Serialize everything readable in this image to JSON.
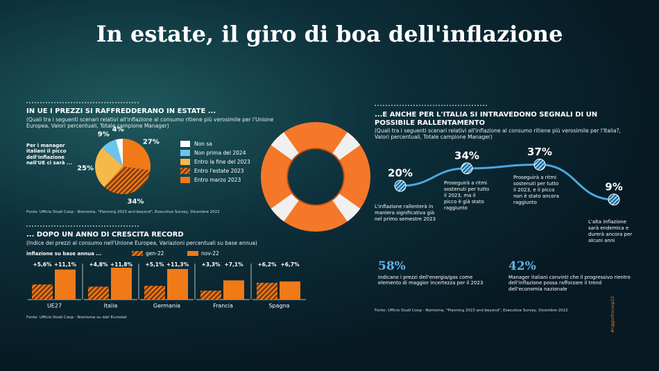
{
  "title": "In estate, il giro di boa dell'inflazione",
  "tag": "#rapportocoop22",
  "chart_data": [
    {
      "type": "pie",
      "title": "IN UE I PREZZI SI RAFFREDDERANO IN ESTATE ...",
      "subtitle": "(Quali tra i seguenti scenari relativi all'inflazione al consumo ritiene più verosimile per l'Unione Europea, Valori percentuali, Totale campione Manager)",
      "annotation": "Per i manager italiani il picco dell'inflazione nell'UE ci sarà ...",
      "categories": [
        "Non sa",
        "Non prima del 2024",
        "Entro la fine del 2023",
        "Entro l'estate 2023",
        "Entro marzo 2023"
      ],
      "values": [
        4,
        9,
        25,
        34,
        27
      ],
      "value_labels": [
        "4%",
        "9%",
        "25%",
        "34%",
        "27%"
      ],
      "colors": [
        "#ffffff",
        "#6cc4ee",
        "#f7b84a",
        "hatch",
        "#f07a18"
      ],
      "source": "Fonte: Ufficio Studi Coop - Nomisma, \"Planning 2023 and beyond\", Executive Survey, Dicembre 2022"
    },
    {
      "type": "bar",
      "title": "... DOPO UN ANNO DI CRESCITA RECORD",
      "subtitle": "(Indice dei prezzi al consumo nell'Unione Europea, Variazioni percentuali su base annua)",
      "annotation": "inflazione su base annua ...",
      "categories": [
        "UE27",
        "Italia",
        "Germania",
        "Francia",
        "Spagna"
      ],
      "series": [
        {
          "name": "gen-22",
          "color": "hatch",
          "values": [
            5.6,
            4.8,
            5.1,
            3.3,
            6.2
          ],
          "value_labels": [
            "+5,6%",
            "+4,8%",
            "+5,1%",
            "+3,3%",
            "+6,2%"
          ]
        },
        {
          "name": "nov-22",
          "color": "#f07a18",
          "values": [
            11.1,
            11.8,
            11.3,
            7.1,
            6.7
          ],
          "value_labels": [
            "+11,1%",
            "+11,8%",
            "+11,3%",
            "+7,1%",
            "+6,7%"
          ]
        }
      ],
      "source": "Fonte: Ufficio Studi Coop - Nomisma su dati Eurostat"
    },
    {
      "type": "line",
      "title": "...E ANCHE PER L'ITALIA SI INTRAVEDONO SEGNALI DI UN POSSIBILE RALLENTAMENTO",
      "subtitle": "(Quali tra i seguenti scenari relativi all'inflazione al consumo ritiene più verosimile per l'Italia?, Valori percentuali, Totale campione Manager)",
      "categories": [
        "L'inflazione rallenterà in maniera significativa già nel primo semestre 2023",
        "Proseguirà a ritmi sostenuti per tutto il 2023, ma il picco è già stato raggiunto",
        "Proseguirà a ritmi sostenuti per tutto il 2023, e il picco non è stato ancora raggiunto",
        "L'alta inflazione sarà endemica e durerà ancora per alcuni anni"
      ],
      "values": [
        20,
        34,
        37,
        9
      ],
      "value_labels": [
        "20%",
        "34%",
        "37%",
        "9%"
      ],
      "color": "#4aa8e0",
      "stats": [
        {
          "value": "58%",
          "text": "Indicano i prezzi dell'energia/gas come elemento di maggior incertezza per il 2023"
        },
        {
          "value": "42%",
          "text": "Manager italiani convinti che il progressivo rientro dell'inflazione possa rafforzare il trend dell'economia nazionale"
        }
      ],
      "source": "Fonte: Ufficio Studi Coop - Nomisma, \"Planning 2023 and beyond\", Executive Survey, Dicembre 2022"
    }
  ]
}
